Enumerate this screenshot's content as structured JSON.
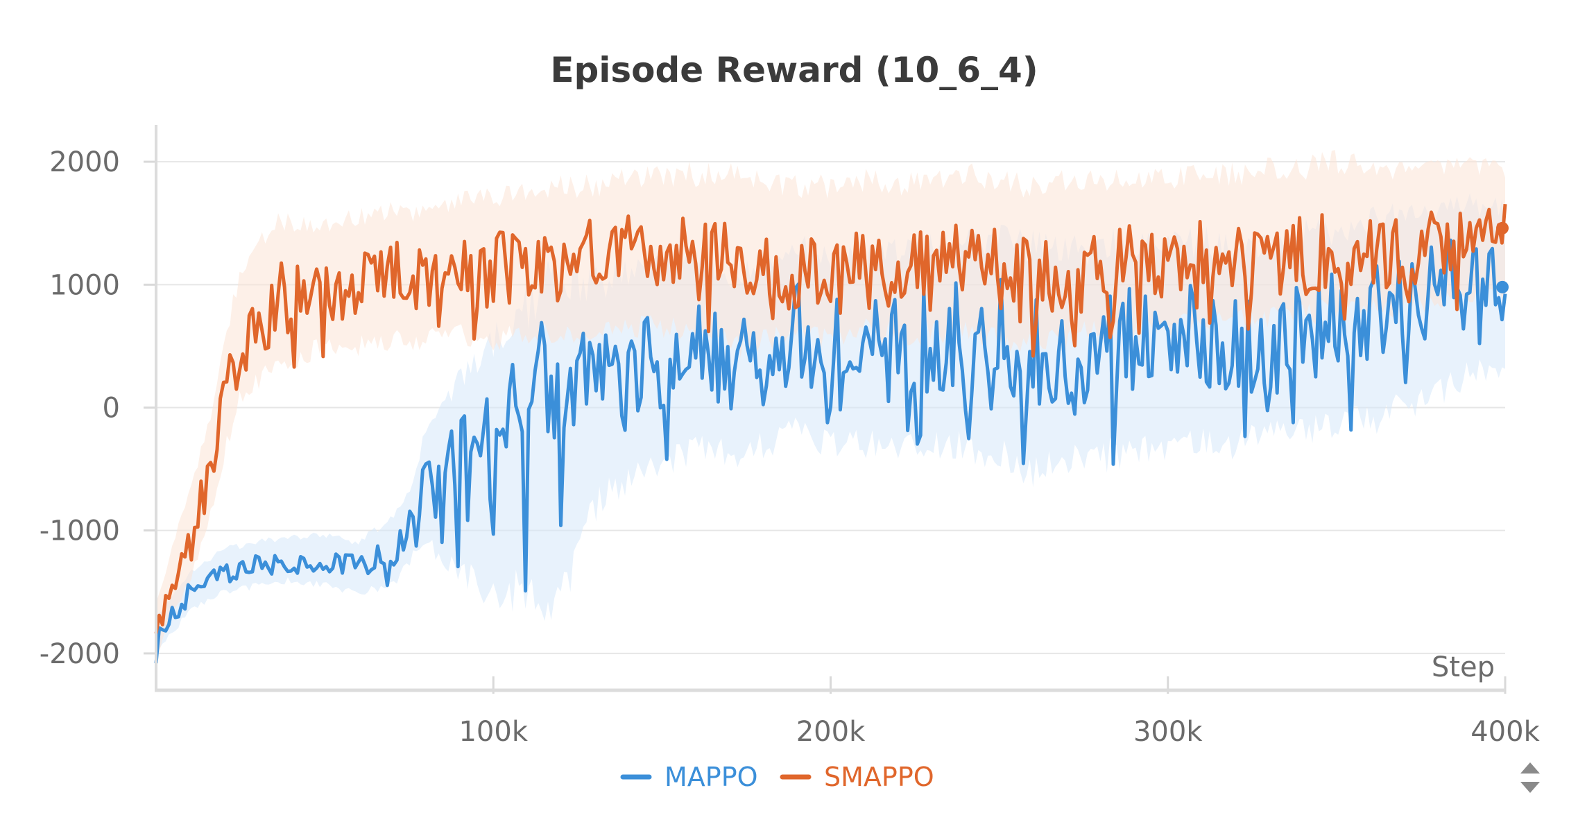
{
  "chart_data": {
    "type": "line",
    "title": "Episode Reward (10_6_4)",
    "xlabel": "Step",
    "ylabel": "",
    "xlim": [
      0,
      400000
    ],
    "ylim": [
      -2300,
      2300
    ],
    "x_ticks": [
      {
        "value": 100000,
        "label": "100k"
      },
      {
        "value": 200000,
        "label": "200k"
      },
      {
        "value": 300000,
        "label": "300k"
      },
      {
        "value": 400000,
        "label": "400k"
      }
    ],
    "y_ticks": [
      {
        "value": 2000,
        "label": "2000"
      },
      {
        "value": 1000,
        "label": "1000"
      },
      {
        "value": 0,
        "label": "0"
      },
      {
        "value": -1000,
        "label": "-1000"
      },
      {
        "value": -2000,
        "label": "-2000"
      }
    ],
    "grid": true,
    "legend_position": "bottom-center",
    "series": [
      {
        "name": "MAPPO",
        "color": "#3b8fd9",
        "band_color": "#d6e8fa",
        "x": [
          0,
          10000,
          20000,
          30000,
          40000,
          50000,
          60000,
          70000,
          75000,
          80000,
          90000,
          100000,
          110000,
          120000,
          130000,
          140000,
          150000,
          160000,
          170000,
          180000,
          190000,
          200000,
          210000,
          220000,
          230000,
          240000,
          250000,
          260000,
          270000,
          280000,
          290000,
          300000,
          310000,
          320000,
          330000,
          340000,
          350000,
          360000,
          370000,
          380000,
          390000,
          400000
        ],
        "y": [
          -1900,
          -1500,
          -1350,
          -1300,
          -1250,
          -1250,
          -1300,
          -1200,
          -1000,
          -650,
          -500,
          -350,
          -50,
          100,
          150,
          250,
          350,
          450,
          400,
          400,
          600,
          550,
          550,
          550,
          550,
          600,
          600,
          450,
          450,
          500,
          550,
          550,
          550,
          500,
          550,
          600,
          650,
          750,
          850,
          900,
          1050,
          980
        ],
        "band": [
          [
            -2000,
            -1700
          ],
          [
            -1650,
            -1350
          ],
          [
            -1500,
            -1150
          ],
          [
            -1450,
            -1100
          ],
          [
            -1400,
            -1050
          ],
          [
            -1450,
            -1050
          ],
          [
            -1500,
            -1100
          ],
          [
            -1450,
            -900
          ],
          [
            -1250,
            -700
          ],
          [
            -1100,
            -200
          ],
          [
            -1300,
            200
          ],
          [
            -1500,
            500
          ],
          [
            -1500,
            800
          ],
          [
            -1600,
            1100
          ],
          [
            -800,
            1000
          ],
          [
            -600,
            1100
          ],
          [
            -500,
            1200
          ],
          [
            -300,
            1200
          ],
          [
            -400,
            1100
          ],
          [
            -300,
            1100
          ],
          [
            -200,
            1300
          ],
          [
            -300,
            1200
          ],
          [
            -300,
            1200
          ],
          [
            -300,
            1250
          ],
          [
            -300,
            1300
          ],
          [
            -300,
            1350
          ],
          [
            -400,
            1400
          ],
          [
            -500,
            1300
          ],
          [
            -450,
            1250
          ],
          [
            -400,
            1300
          ],
          [
            -350,
            1350
          ],
          [
            -300,
            1350
          ],
          [
            -300,
            1350
          ],
          [
            -300,
            1300
          ],
          [
            -250,
            1350
          ],
          [
            -200,
            1400
          ],
          [
            -150,
            1450
          ],
          [
            -100,
            1500
          ],
          [
            0,
            1600
          ],
          [
            100,
            1600
          ],
          [
            300,
            1650
          ],
          [
            300,
            1600
          ]
        ]
      },
      {
        "name": "SMAPPO",
        "color": "#e0662b",
        "band_color": "#fbe3d6",
        "x": [
          0,
          5000,
          10000,
          15000,
          18000,
          20000,
          25000,
          30000,
          35000,
          40000,
          50000,
          60000,
          70000,
          80000,
          90000,
          100000,
          110000,
          120000,
          130000,
          140000,
          150000,
          160000,
          170000,
          180000,
          190000,
          200000,
          210000,
          220000,
          230000,
          240000,
          250000,
          260000,
          270000,
          280000,
          290000,
          300000,
          310000,
          320000,
          330000,
          340000,
          350000,
          360000,
          370000,
          380000,
          390000,
          400000
        ],
        "y": [
          -1850,
          -1400,
          -1100,
          -600,
          -300,
          0,
          500,
          600,
          900,
          900,
          950,
          1000,
          1050,
          1050,
          1100,
          1100,
          1150,
          1150,
          1200,
          1250,
          1250,
          1150,
          1100,
          1050,
          1100,
          1050,
          1150,
          1100,
          1100,
          1150,
          1100,
          1050,
          1100,
          1150,
          1150,
          1150,
          1200,
          1200,
          1250,
          1250,
          1300,
          1300,
          1300,
          1350,
          1400,
          1460
        ],
        "band": [
          [
            -2050,
            -1600
          ],
          [
            -1650,
            -1100
          ],
          [
            -1400,
            -700
          ],
          [
            -1000,
            -200
          ],
          [
            -700,
            200
          ],
          [
            -400,
            500
          ],
          [
            100,
            1100
          ],
          [
            200,
            1300
          ],
          [
            400,
            1500
          ],
          [
            400,
            1500
          ],
          [
            500,
            1500
          ],
          [
            500,
            1550
          ],
          [
            550,
            1600
          ],
          [
            550,
            1600
          ],
          [
            600,
            1700
          ],
          [
            550,
            1700
          ],
          [
            600,
            1750
          ],
          [
            600,
            1800
          ],
          [
            600,
            1800
          ],
          [
            650,
            1850
          ],
          [
            650,
            1900
          ],
          [
            600,
            1900
          ],
          [
            500,
            1950
          ],
          [
            550,
            1800
          ],
          [
            600,
            1800
          ],
          [
            550,
            1800
          ],
          [
            650,
            1850
          ],
          [
            600,
            1800
          ],
          [
            600,
            1850
          ],
          [
            650,
            1900
          ],
          [
            550,
            1850
          ],
          [
            500,
            1800
          ],
          [
            550,
            1850
          ],
          [
            650,
            1850
          ],
          [
            650,
            1850
          ],
          [
            650,
            1850
          ],
          [
            700,
            1900
          ],
          [
            700,
            1900
          ],
          [
            750,
            1950
          ],
          [
            750,
            1950
          ],
          [
            800,
            2000
          ],
          [
            800,
            1950
          ],
          [
            800,
            1950
          ],
          [
            850,
            1950
          ],
          [
            900,
            1950
          ],
          [
            950,
            1950
          ]
        ]
      }
    ]
  },
  "ui": {
    "sort_icon": "sort-arrows-icon"
  }
}
